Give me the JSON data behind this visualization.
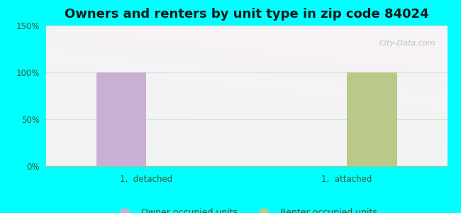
{
  "title": "Owners and renters by unit type in zip code 84024",
  "title_fontsize": 13,
  "categories": [
    "1,  detached",
    "1,  attached"
  ],
  "owner_values": [
    100,
    0
  ],
  "renter_values": [
    0,
    100
  ],
  "owner_color": "#c9afd4",
  "renter_color": "#b8c98a",
  "ylim": [
    0,
    150
  ],
  "yticks": [
    0,
    50,
    100,
    150
  ],
  "ytick_labels": [
    "0%",
    "50%",
    "100%",
    "150%"
  ],
  "background_color": "#00ffff",
  "bar_width": 0.25,
  "legend_labels": [
    "Owner occupied units",
    "Renter occupied units"
  ],
  "watermark": "City-Data.com",
  "grid_color": "#d0e8d0",
  "tick_color": "#3a5a3a",
  "axis_color": "#a0c0a0",
  "plot_bg_top": "#f0fff8",
  "plot_bg_bottom": "#d8f0d8"
}
